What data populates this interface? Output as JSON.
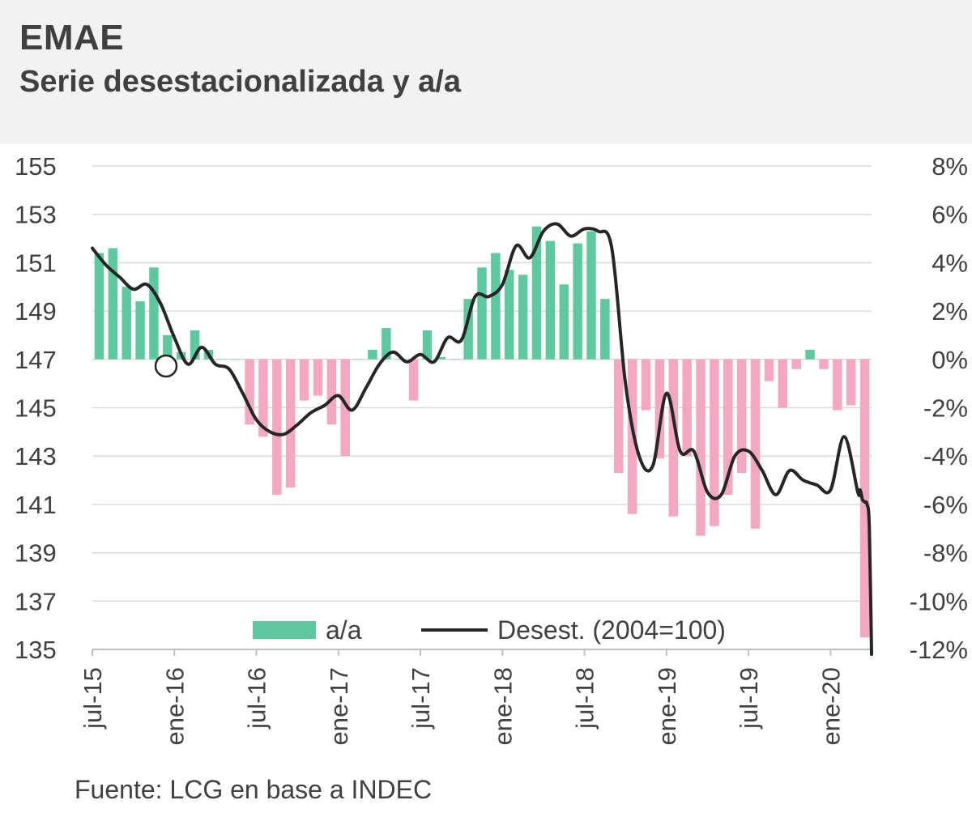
{
  "header": {
    "title": "EMAE",
    "subtitle": "Serie desestacionalizada y a/a"
  },
  "footer": {
    "source": "Fuente: LCG en base a INDEC"
  },
  "chart_data": {
    "type": "bar+line",
    "months": [
      "jul-15",
      "ago-15",
      "sep-15",
      "oct-15",
      "nov-15",
      "dic-15",
      "ene-16",
      "feb-16",
      "mar-16",
      "abr-16",
      "may-16",
      "jun-16",
      "jul-16",
      "ago-16",
      "sep-16",
      "oct-16",
      "nov-16",
      "dic-16",
      "ene-17",
      "feb-17",
      "mar-17",
      "abr-17",
      "may-17",
      "jun-17",
      "jul-17",
      "ago-17",
      "sep-17",
      "oct-17",
      "nov-17",
      "dic-17",
      "ene-18",
      "feb-18",
      "mar-18",
      "abr-18",
      "may-18",
      "jun-18",
      "jul-18",
      "ago-18",
      "sep-18",
      "oct-18",
      "nov-18",
      "dic-18",
      "ene-19",
      "feb-19",
      "mar-19",
      "abr-19",
      "may-19",
      "jun-19",
      "jul-19",
      "ago-19",
      "sep-19",
      "oct-19",
      "nov-19",
      "dic-19",
      "ene-20",
      "feb-20",
      "mar-20"
    ],
    "x_tick_labels": [
      "jul-15",
      "ene-16",
      "jul-16",
      "ene-17",
      "jul-17",
      "ene-18",
      "jul-18",
      "ene-19",
      "jul-19",
      "ene-20"
    ],
    "series": [
      {
        "name": "a/a",
        "kind": "bar",
        "axis": "right",
        "unit": "%",
        "values": [
          4.4,
          4.6,
          3.0,
          2.4,
          3.8,
          1.0,
          0.3,
          1.2,
          0.4,
          0.0,
          0.0,
          -2.7,
          -3.2,
          -5.6,
          -5.3,
          -1.7,
          -1.5,
          -2.7,
          -4.0,
          0.0,
          0.4,
          1.3,
          0.0,
          -1.7,
          1.2,
          0.1,
          0.0,
          2.5,
          3.8,
          4.4,
          3.7,
          3.5,
          5.5,
          4.9,
          3.1,
          4.8,
          5.3,
          2.5,
          -4.7,
          -6.4,
          -2.1,
          -4.1,
          -6.5,
          -4.0,
          -7.3,
          -6.9,
          -5.6,
          -4.7,
          -7.0,
          -0.9,
          -2.0,
          -0.4,
          0.4,
          -0.4,
          -2.1,
          -1.9,
          -11.5
        ]
      },
      {
        "name": "Desest. (2004=100)",
        "kind": "line",
        "axis": "left",
        "values": [
          151.6,
          150.9,
          150.4,
          149.9,
          150.1,
          149.3,
          147.9,
          146.8,
          147.5,
          146.8,
          146.6,
          145.6,
          144.5,
          144.0,
          143.9,
          144.3,
          144.8,
          145.1,
          145.5,
          144.9,
          145.8,
          146.8,
          147.3,
          146.9,
          147.2,
          146.9,
          147.9,
          147.8,
          149.6,
          149.6,
          150.1,
          151.7,
          151.2,
          152.3,
          152.6,
          152.1,
          152.4,
          152.3,
          151.6,
          146.0,
          143.0,
          142.6,
          145.6,
          143.2,
          143.2,
          141.5,
          141.4,
          143.0,
          143.2,
          142.4,
          141.4,
          142.4,
          142.0,
          141.8,
          141.6,
          143.8,
          141.5
        ],
        "tail": [
          141.6,
          141.2,
          141.1,
          141.0,
          140.1,
          134.8
        ]
      }
    ],
    "y_left": {
      "min": 135,
      "max": 155,
      "ticks": [
        135,
        137,
        139,
        141,
        143,
        145,
        147,
        149,
        151,
        153,
        155
      ]
    },
    "y_right": {
      "min": -12,
      "max": 8,
      "ticks": [
        -12,
        -10,
        -8,
        -6,
        -4,
        -2,
        0,
        2,
        4,
        6,
        8
      ],
      "tick_labels": [
        "-12%",
        "-10%",
        "-8%",
        "-6%",
        "-4%",
        "-2%",
        "0%",
        "2%",
        "4%",
        "6%",
        "8%"
      ]
    },
    "positive_bar_color": "#5ec9a0",
    "negative_bar_color": "#f4a7c0",
    "line_color": "#262626",
    "grid": true,
    "legend_position": "bottom-center"
  }
}
